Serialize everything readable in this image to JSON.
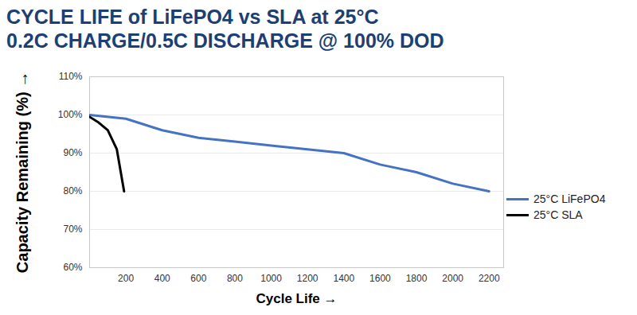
{
  "chart_data": {
    "type": "line",
    "title": "CYCLE LIFE of LiFePO4 vs SLA at 25°C",
    "subtitle": "0.2C CHARGE/0.5C DISCHARGE @ 100% DOD",
    "x_label": "Cycle Life",
    "y_label": "Capacity Remaining (%)",
    "series": [
      {
        "name": "25°C LiFePO4",
        "color": "#4472c4",
        "x": [
          0,
          200,
          400,
          600,
          800,
          1000,
          1200,
          1400,
          1600,
          1800,
          2000,
          2200
        ],
        "values": [
          100,
          99,
          96,
          94,
          93,
          92,
          91,
          90,
          87,
          85,
          82,
          80
        ]
      },
      {
        "name": "25°C SLA",
        "color": "#000000",
        "x": [
          0,
          50,
          100,
          150,
          190
        ],
        "values": [
          99.5,
          98,
          96,
          91,
          80
        ]
      }
    ],
    "xlim": [
      0,
      2280
    ],
    "xticks": [
      200,
      400,
      600,
      800,
      1000,
      1200,
      1400,
      1600,
      1800,
      2000,
      2200
    ],
    "ylim": [
      60,
      110
    ],
    "yticks": [
      {
        "value": 60,
        "label": "60%"
      },
      {
        "value": 70,
        "label": "70%"
      },
      {
        "value": 80,
        "label": "80%"
      },
      {
        "value": 90,
        "label": "90%"
      },
      {
        "value": 100,
        "label": "100%"
      },
      {
        "value": 110,
        "label": "110%"
      }
    ],
    "grid": true,
    "legend": "right"
  }
}
